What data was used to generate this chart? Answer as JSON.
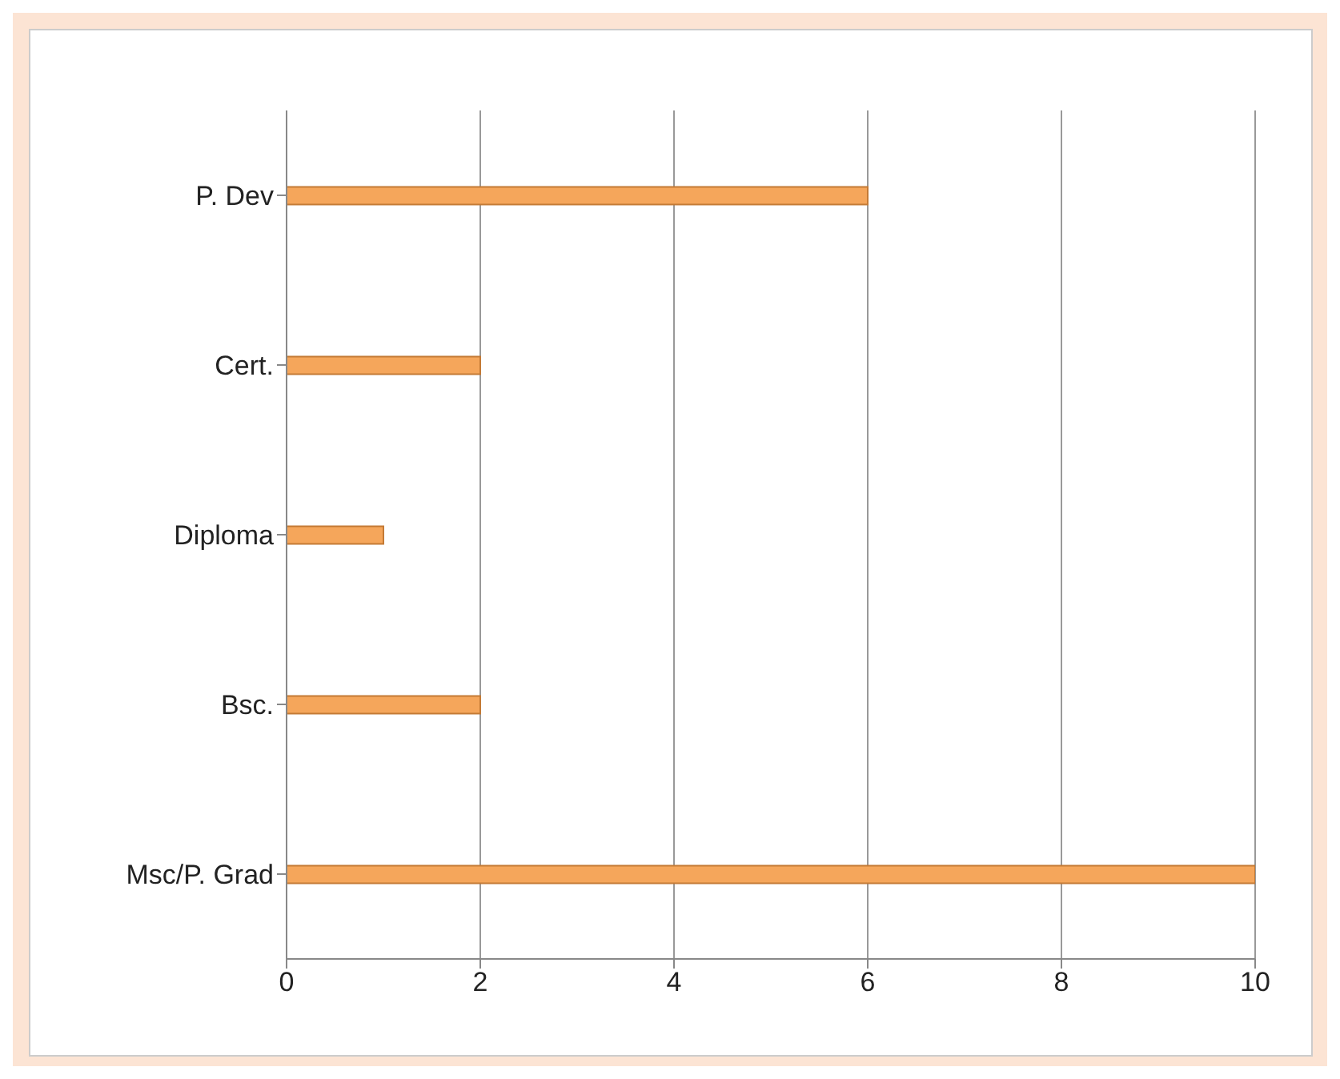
{
  "chart_data": {
    "type": "bar",
    "orientation": "horizontal",
    "categories": [
      "P. Dev",
      "Cert.",
      "Diploma",
      "Bsc.",
      "Msc/P. Grad"
    ],
    "values": [
      6,
      2,
      1,
      2,
      10
    ],
    "color": "#f5a65b",
    "xlim": [
      0,
      10
    ],
    "xticks": [
      0,
      2,
      4,
      6,
      8,
      10
    ],
    "grid": "x"
  }
}
